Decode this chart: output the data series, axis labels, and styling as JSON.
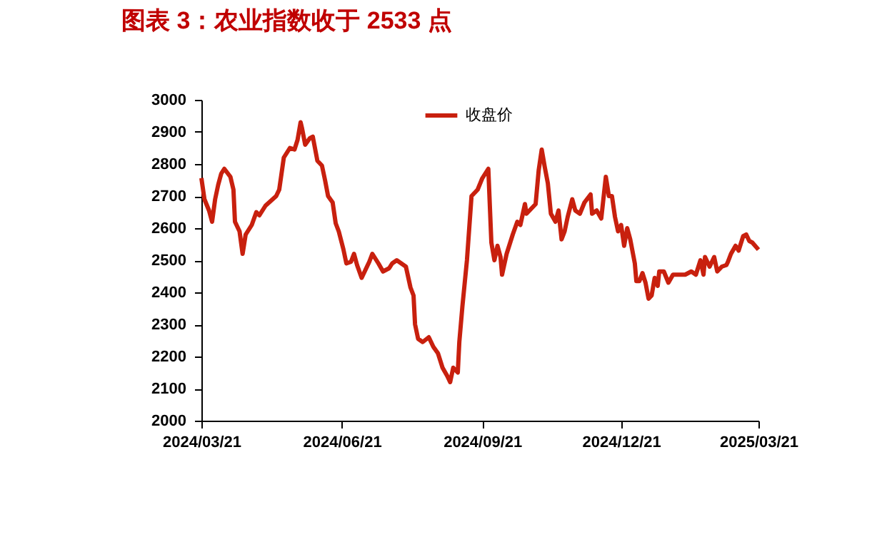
{
  "chart_data": {
    "type": "line",
    "title": "图表 3：农业指数收于 2533 点",
    "x": [
      "2024-03-21",
      "2024-03-23",
      "2024-03-26",
      "2024-03-28",
      "2024-03-30",
      "2024-04-01",
      "2024-04-03",
      "2024-04-05",
      "2024-04-09",
      "2024-04-11",
      "2024-04-12",
      "2024-04-15",
      "2024-04-17",
      "2024-04-19",
      "2024-04-23",
      "2024-04-26",
      "2024-04-28",
      "2024-05-02",
      "2024-05-09",
      "2024-05-11",
      "2024-05-14",
      "2024-05-18",
      "2024-05-21",
      "2024-05-23",
      "2024-05-25",
      "2024-05-26",
      "2024-05-28",
      "2024-05-31",
      "2024-06-02",
      "2024-06-05",
      "2024-06-08",
      "2024-06-10",
      "2024-06-12",
      "2024-06-15",
      "2024-06-17",
      "2024-06-19",
      "2024-06-22",
      "2024-06-24",
      "2024-06-27",
      "2024-06-29",
      "2024-07-01",
      "2024-07-04",
      "2024-07-06",
      "2024-07-09",
      "2024-07-11",
      "2024-07-15",
      "2024-07-18",
      "2024-07-22",
      "2024-07-24",
      "2024-07-27",
      "2024-07-30",
      "2024-08-02",
      "2024-08-05",
      "2024-08-07",
      "2024-08-08",
      "2024-08-10",
      "2024-08-13",
      "2024-08-17",
      "2024-08-20",
      "2024-08-23",
      "2024-08-26",
      "2024-08-29",
      "2024-08-31",
      "2024-09-02",
      "2024-09-05",
      "2024-09-06",
      "2024-09-08",
      "2024-09-11",
      "2024-09-14",
      "2024-09-18",
      "2024-09-21",
      "2024-09-25",
      "2024-09-27",
      "2024-09-29",
      "2024-10-01",
      "2024-10-03",
      "2024-10-04",
      "2024-10-07",
      "2024-10-11",
      "2024-10-14",
      "2024-10-16",
      "2024-10-19",
      "2024-10-20",
      "2024-10-22",
      "2024-10-26",
      "2024-10-28",
      "2024-10-30",
      "2024-11-01",
      "2024-11-03",
      "2024-11-05",
      "2024-11-08",
      "2024-11-10",
      "2024-11-12",
      "2024-11-14",
      "2024-11-16",
      "2024-11-19",
      "2024-11-21",
      "2024-11-24",
      "2024-11-27",
      "2024-12-01",
      "2024-12-02",
      "2024-12-05",
      "2024-12-08",
      "2024-12-11",
      "2024-12-13",
      "2024-12-15",
      "2024-12-17",
      "2024-12-19",
      "2024-12-21",
      "2024-12-23",
      "2024-12-25",
      "2024-12-27",
      "2024-12-30",
      "2024-12-31",
      "2025-01-02",
      "2025-01-04",
      "2025-01-06",
      "2025-01-08",
      "2025-01-10",
      "2025-01-12",
      "2025-01-14",
      "2025-01-15",
      "2025-01-18",
      "2025-01-21",
      "2025-01-24",
      "2025-01-28",
      "2025-02-01",
      "2025-02-05",
      "2025-02-08",
      "2025-02-11",
      "2025-02-13",
      "2025-02-14",
      "2025-02-17",
      "2025-02-20",
      "2025-02-22",
      "2025-02-25",
      "2025-02-28",
      "2025-03-01",
      "2025-03-03",
      "2025-03-06",
      "2025-03-08",
      "2025-03-11",
      "2025-03-13",
      "2025-03-15",
      "2025-03-17",
      "2025-03-21"
    ],
    "series": [
      {
        "name": "收盘价",
        "color": "#c8200e",
        "values": [
          2756,
          2690,
          2655,
          2620,
          2690,
          2735,
          2770,
          2785,
          2760,
          2720,
          2620,
          2590,
          2520,
          2580,
          2610,
          2650,
          2640,
          2670,
          2700,
          2720,
          2820,
          2850,
          2845,
          2875,
          2930,
          2910,
          2860,
          2880,
          2885,
          2810,
          2795,
          2750,
          2700,
          2680,
          2615,
          2590,
          2535,
          2490,
          2495,
          2520,
          2485,
          2445,
          2465,
          2495,
          2520,
          2490,
          2465,
          2475,
          2490,
          2500,
          2490,
          2480,
          2415,
          2390,
          2300,
          2255,
          2245,
          2260,
          2230,
          2210,
          2165,
          2140,
          2120,
          2165,
          2150,
          2245,
          2355,
          2500,
          2700,
          2720,
          2755,
          2785,
          2555,
          2500,
          2545,
          2510,
          2455,
          2520,
          2580,
          2620,
          2610,
          2675,
          2645,
          2655,
          2675,
          2780,
          2845,
          2790,
          2740,
          2645,
          2620,
          2655,
          2565,
          2590,
          2635,
          2690,
          2655,
          2645,
          2680,
          2705,
          2645,
          2655,
          2630,
          2760,
          2700,
          2700,
          2635,
          2590,
          2610,
          2545,
          2600,
          2565,
          2490,
          2435,
          2435,
          2460,
          2430,
          2380,
          2390,
          2445,
          2420,
          2465,
          2465,
          2430,
          2455,
          2455,
          2455,
          2465,
          2455,
          2500,
          2455,
          2510,
          2480,
          2510,
          2465,
          2480,
          2485,
          2495,
          2520,
          2545,
          2530,
          2575,
          2580,
          2560,
          2555,
          2533
        ]
      }
    ],
    "xlim": [
      "2024-03-21",
      "2025-03-21"
    ],
    "xticks": [
      {
        "value": "2024-03-21",
        "label": "2024/03/21"
      },
      {
        "value": "2024-06-21",
        "label": "2024/06/21"
      },
      {
        "value": "2024-09-21",
        "label": "2024/09/21"
      },
      {
        "value": "2024-12-21",
        "label": "2024/12/21"
      },
      {
        "value": "2025-03-21",
        "label": "2025/03/21"
      }
    ],
    "ylim": [
      2000,
      3000
    ],
    "yticks": [
      2000,
      2100,
      2200,
      2300,
      2400,
      2500,
      2600,
      2700,
      2800,
      2900,
      3000
    ],
    "legend": "top",
    "line_style": "solid",
    "marker": "none"
  }
}
